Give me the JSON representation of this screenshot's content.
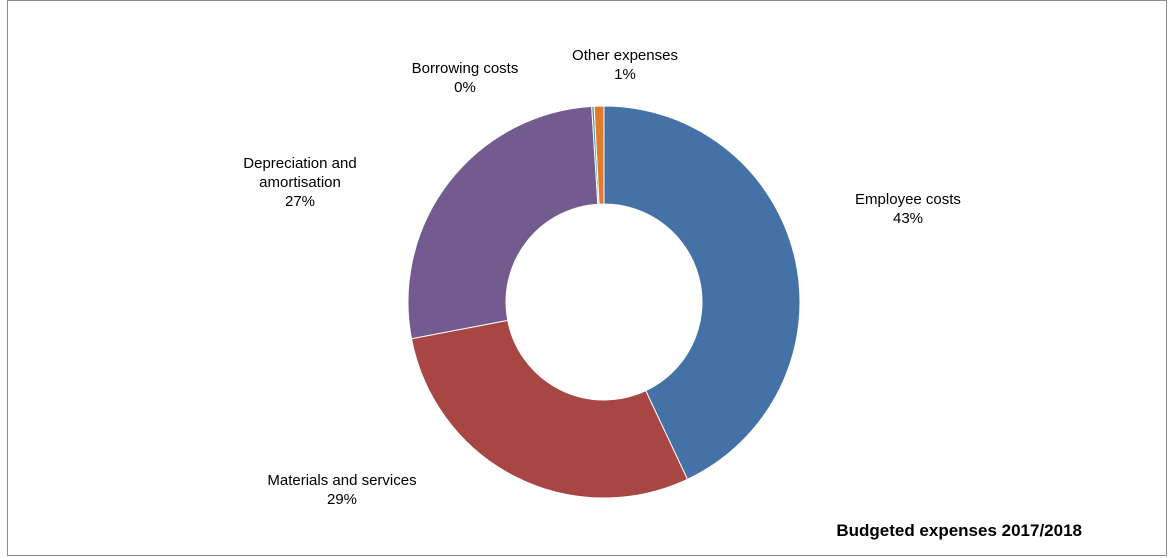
{
  "chart_data": {
    "type": "pie",
    "subtype": "donut",
    "title": "Budgeted expenses 2017/2018",
    "legend": "none",
    "slices": [
      {
        "name": "Employee costs",
        "label_lines": [
          "Employee costs"
        ],
        "value": 43,
        "display": "43%",
        "color": "#4472a6"
      },
      {
        "name": "Materials and services",
        "label_lines": [
          "Materials and services"
        ],
        "value": 29,
        "display": "29%",
        "color": "#a84644"
      },
      {
        "name": "Depreciation and amortisation",
        "label_lines": [
          "Depreciation and",
          "amortisation"
        ],
        "value": 27,
        "display": "27%",
        "color": "#735a8f"
      },
      {
        "name": "Borrowing costs",
        "label_lines": [
          "Borrowing costs"
        ],
        "value": 0.2,
        "display": "0%",
        "color": "#3b96b0"
      },
      {
        "name": "Other expenses",
        "label_lines": [
          "Other expenses"
        ],
        "value": 0.8,
        "display": "1%",
        "color": "#e07b2c"
      }
    ]
  }
}
